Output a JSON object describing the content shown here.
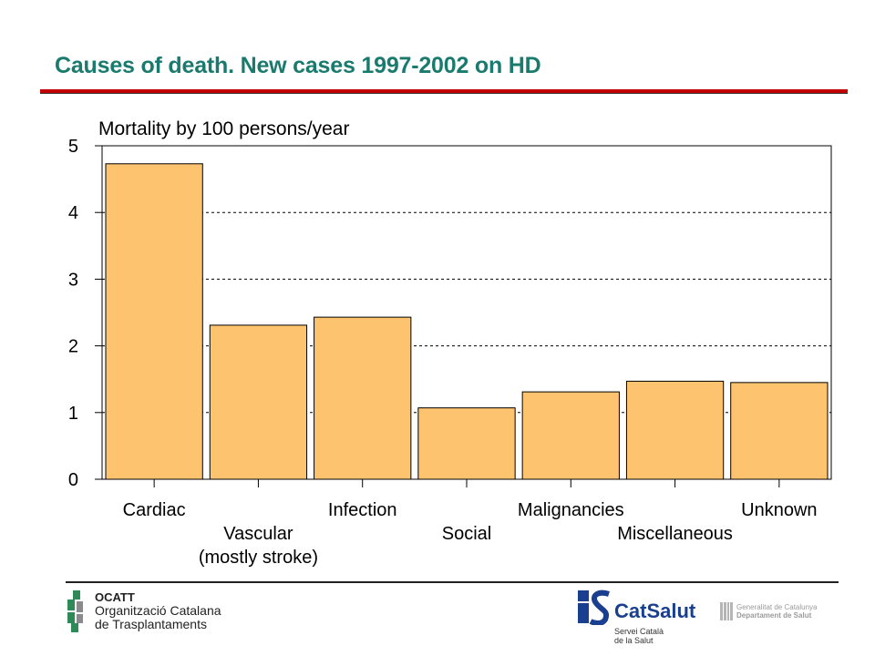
{
  "slide": {
    "title": "Causes of death. New cases 1997-2002 on HD"
  },
  "chart_data": {
    "type": "bar",
    "title": "Mortality by 100 persons/year",
    "categories": [
      "Cardiac",
      "Vascular\n(mostly stroke)",
      "Infection",
      "Social",
      "Malignancies",
      "Miscellaneous",
      "Unknown"
    ],
    "values": [
      4.73,
      2.31,
      2.43,
      1.07,
      1.31,
      1.47,
      1.45
    ],
    "ylim": [
      0,
      5
    ],
    "yticks": [
      0,
      1,
      2,
      3,
      4,
      5
    ],
    "grid": "dashed horizontal",
    "legend": "none",
    "colors": {
      "bar": "#fec36f",
      "bar_edge": "#000000"
    }
  },
  "footer": {
    "ocatt": {
      "abbr": "OCATT",
      "line1": "Organització Catalana",
      "line2": "de Trasplantaments",
      "colors": [
        "#2e8b57",
        "#9a9a9a"
      ]
    },
    "catsalut": {
      "name": "CatSalut",
      "line1": "Servei Català",
      "line2": "de la Salut",
      "color": "#1a3f8f"
    },
    "gencat": {
      "line1": "Generalitat de Catalunya",
      "line2": "Departament de Salut"
    }
  }
}
